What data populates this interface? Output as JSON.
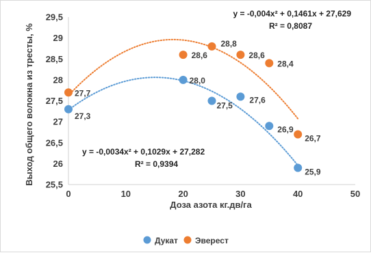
{
  "chart_data": {
    "type": "scatter",
    "xlabel": "Доза азота кг.дв/га",
    "ylabel": "Выход общего волокна  из тресты, %",
    "xlim": [
      0,
      50
    ],
    "ylim": [
      25.5,
      29.5
    ],
    "x_ticks": [
      "0",
      "10",
      "20",
      "30",
      "40",
      "50"
    ],
    "y_ticks": [
      "25,5",
      "26",
      "26,5",
      "27",
      "27,5",
      "28",
      "28,5",
      "29",
      "29,5"
    ],
    "grid": false,
    "legend_position": "bottom",
    "series": [
      {
        "name": "Дукат",
        "color": "#5b9bd5",
        "x": [
          0,
          20,
          25,
          30,
          35,
          40
        ],
        "y": [
          27.3,
          28.0,
          27.5,
          27.6,
          26.9,
          25.9
        ],
        "labels": [
          "27,3",
          "28,0",
          "27,5",
          "27,6",
          "26,9",
          "25,9"
        ],
        "trendline": {
          "type": "polynomial",
          "a": -0.0034,
          "b": 0.1029,
          "c": 27.282
        },
        "equation": "y = -0,0034x² + 0,1029x + 27,282",
        "r2": "R² = 0,9394"
      },
      {
        "name": "Эверест",
        "color": "#ed7d31",
        "x": [
          0,
          20,
          25,
          30,
          35,
          40
        ],
        "y": [
          27.7,
          28.6,
          28.8,
          28.6,
          28.4,
          26.7
        ],
        "labels": [
          "27,7",
          "28,6",
          "28,8",
          "28,6",
          "28,4",
          "26,7"
        ],
        "trendline": {
          "type": "polynomial",
          "a": -0.004,
          "b": 0.1461,
          "c": 27.629
        },
        "equation": "y = -0,004x² + 0,1461x + 27,629",
        "r2": "R² = 0,8087"
      }
    ]
  }
}
